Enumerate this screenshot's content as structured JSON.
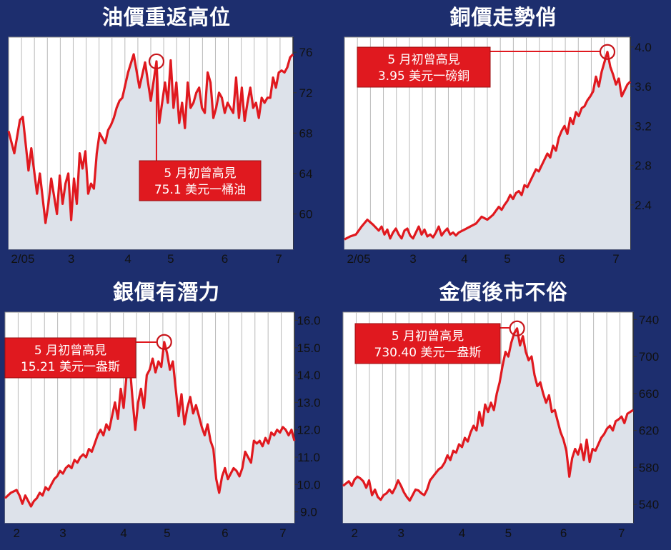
{
  "chart_data": [
    {
      "type": "line",
      "title": "油價重返高位",
      "x_labels": [
        "2/05",
        "3",
        "4",
        "5",
        "6",
        "7"
      ],
      "y_ticks": [
        "60",
        "64",
        "68",
        "72",
        "76"
      ],
      "ylim": [
        56.5,
        77.5
      ],
      "xlim": [
        0,
        1
      ],
      "label_x": [
        0.05,
        0.22,
        0.42,
        0.57,
        0.76,
        0.95
      ],
      "x": [
        0.0,
        0.02,
        0.04,
        0.05,
        0.07,
        0.08,
        0.1,
        0.11,
        0.13,
        0.14,
        0.15,
        0.17,
        0.18,
        0.19,
        0.2,
        0.21,
        0.22,
        0.23,
        0.24,
        0.25,
        0.26,
        0.27,
        0.28,
        0.29,
        0.3,
        0.31,
        0.32,
        0.33,
        0.34,
        0.35,
        0.36,
        0.37,
        0.38,
        0.39,
        0.4,
        0.42,
        0.44,
        0.46,
        0.48,
        0.5,
        0.52,
        0.53,
        0.55,
        0.56,
        0.57,
        0.58,
        0.59,
        0.6,
        0.61,
        0.62,
        0.63,
        0.64,
        0.65,
        0.66,
        0.67,
        0.68,
        0.69,
        0.7,
        0.71,
        0.72,
        0.73,
        0.74,
        0.75,
        0.76,
        0.77,
        0.78,
        0.79,
        0.8,
        0.81,
        0.82,
        0.83,
        0.84,
        0.85,
        0.86,
        0.87,
        0.88,
        0.89,
        0.9,
        0.91,
        0.92,
        0.93,
        0.94,
        0.95,
        0.96,
        0.97,
        0.98,
        0.99,
        1.0
      ],
      "y": [
        68.2,
        66.0,
        69.3,
        69.6,
        64.3,
        66.5,
        62.0,
        64.0,
        59.1,
        61.0,
        63.5,
        60.0,
        63.8,
        61.0,
        63.0,
        64.0,
        59.4,
        63.5,
        61.0,
        66.0,
        64.5,
        66.2,
        62.0,
        63.0,
        62.5,
        66.0,
        68.0,
        67.5,
        67.0,
        68.3,
        68.8,
        69.5,
        70.5,
        71.2,
        71.5,
        74.0,
        75.8,
        72.5,
        75.0,
        71.2,
        75.1,
        69.0,
        73.0,
        71.0,
        75.2,
        70.5,
        73.0,
        69.0,
        71.0,
        68.5,
        73.0,
        70.5,
        71.0,
        72.0,
        72.5,
        70.5,
        70.0,
        74.0,
        73.0,
        69.5,
        70.5,
        72.0,
        71.5,
        70.0,
        71.0,
        70.5,
        70.0,
        73.5,
        69.5,
        72.5,
        69.2,
        71.0,
        72.5,
        70.5,
        71.0,
        69.5,
        71.5,
        71.0,
        71.5,
        71.5,
        73.5,
        72.5,
        74.0,
        74.2,
        74.0,
        74.5,
        75.5,
        75.8
      ],
      "peak_index": 40,
      "callout": {
        "lines": [
          "5 月初曾高見",
          "75.1 美元一桶油"
        ]
      }
    },
    {
      "type": "line",
      "title": "銅價走勢俏",
      "x_labels": [
        "2/05",
        "3",
        "4",
        "5",
        "6",
        "7"
      ],
      "y_ticks": [
        "2.4",
        "2.8",
        "3.2",
        "3.6",
        "4.0"
      ],
      "ylim": [
        1.95,
        4.1
      ],
      "xlim": [
        0,
        1
      ],
      "label_x": [
        0.05,
        0.24,
        0.42,
        0.57,
        0.76,
        0.95
      ],
      "x": [
        0.0,
        0.02,
        0.04,
        0.06,
        0.08,
        0.1,
        0.12,
        0.13,
        0.14,
        0.15,
        0.16,
        0.17,
        0.18,
        0.19,
        0.2,
        0.21,
        0.22,
        0.23,
        0.24,
        0.25,
        0.26,
        0.27,
        0.28,
        0.29,
        0.3,
        0.31,
        0.32,
        0.33,
        0.34,
        0.35,
        0.36,
        0.37,
        0.38,
        0.39,
        0.4,
        0.42,
        0.44,
        0.46,
        0.48,
        0.5,
        0.52,
        0.53,
        0.54,
        0.55,
        0.56,
        0.57,
        0.58,
        0.59,
        0.6,
        0.61,
        0.62,
        0.63,
        0.64,
        0.65,
        0.66,
        0.67,
        0.68,
        0.69,
        0.7,
        0.71,
        0.72,
        0.73,
        0.74,
        0.75,
        0.76,
        0.77,
        0.78,
        0.79,
        0.8,
        0.81,
        0.82,
        0.83,
        0.84,
        0.85,
        0.86,
        0.87,
        0.88,
        0.89,
        0.9,
        0.91,
        0.92,
        0.93,
        0.94,
        0.95,
        0.96,
        0.97,
        0.98,
        0.99,
        1.0
      ],
      "y": [
        2.05,
        2.08,
        2.1,
        2.18,
        2.25,
        2.2,
        2.14,
        2.18,
        2.1,
        2.15,
        2.06,
        2.12,
        2.16,
        2.1,
        2.06,
        2.14,
        2.16,
        2.09,
        2.06,
        2.12,
        2.18,
        2.1,
        2.15,
        2.08,
        2.1,
        2.07,
        2.12,
        2.18,
        2.09,
        2.13,
        2.16,
        2.1,
        2.12,
        2.09,
        2.12,
        2.15,
        2.18,
        2.21,
        2.28,
        2.25,
        2.3,
        2.34,
        2.38,
        2.35,
        2.4,
        2.44,
        2.5,
        2.46,
        2.52,
        2.54,
        2.5,
        2.6,
        2.58,
        2.64,
        2.7,
        2.76,
        2.74,
        2.8,
        2.86,
        2.92,
        2.88,
        3.0,
        2.95,
        3.08,
        3.15,
        3.2,
        3.12,
        3.28,
        3.22,
        3.34,
        3.3,
        3.38,
        3.4,
        3.46,
        3.5,
        3.55,
        3.7,
        3.6,
        3.75,
        3.85,
        3.95,
        3.8,
        3.72,
        3.62,
        3.68,
        3.5,
        3.56,
        3.62,
        3.65
      ],
      "peak_index": 80,
      "callout": {
        "lines": [
          "5 月初曾高見",
          "3.95 美元一磅銅"
        ]
      }
    },
    {
      "type": "line",
      "title": "銀價有潛力",
      "x_labels": [
        "2",
        "3",
        "4",
        "5",
        "6",
        "7"
      ],
      "y_ticks": [
        "9.0",
        "10.0",
        "11.0",
        "12.0",
        "13.0",
        "14.0",
        "15.0",
        "16.0"
      ],
      "ylim": [
        8.6,
        16.3
      ],
      "xlim": [
        0,
        1
      ],
      "label_x": [
        0.04,
        0.2,
        0.41,
        0.56,
        0.76,
        0.96
      ],
      "x": [
        0.0,
        0.02,
        0.04,
        0.05,
        0.06,
        0.07,
        0.08,
        0.09,
        0.1,
        0.11,
        0.12,
        0.13,
        0.14,
        0.15,
        0.16,
        0.17,
        0.18,
        0.19,
        0.2,
        0.21,
        0.22,
        0.23,
        0.24,
        0.25,
        0.26,
        0.27,
        0.28,
        0.29,
        0.3,
        0.31,
        0.32,
        0.33,
        0.34,
        0.35,
        0.36,
        0.37,
        0.38,
        0.39,
        0.4,
        0.41,
        0.42,
        0.43,
        0.44,
        0.45,
        0.46,
        0.47,
        0.48,
        0.49,
        0.5,
        0.51,
        0.52,
        0.53,
        0.54,
        0.55,
        0.56,
        0.57,
        0.58,
        0.59,
        0.6,
        0.61,
        0.62,
        0.63,
        0.64,
        0.65,
        0.66,
        0.67,
        0.68,
        0.69,
        0.7,
        0.71,
        0.72,
        0.73,
        0.74,
        0.75,
        0.76,
        0.77,
        0.78,
        0.79,
        0.8,
        0.81,
        0.82,
        0.83,
        0.84,
        0.85,
        0.86,
        0.87,
        0.88,
        0.89,
        0.9,
        0.91,
        0.92,
        0.93,
        0.94,
        0.95,
        0.96,
        0.97,
        0.98,
        0.99,
        1.0
      ],
      "y": [
        9.5,
        9.7,
        9.8,
        9.6,
        9.3,
        9.6,
        9.4,
        9.2,
        9.4,
        9.5,
        9.7,
        9.6,
        9.9,
        9.8,
        10.0,
        10.2,
        10.3,
        10.5,
        10.4,
        10.6,
        10.7,
        10.6,
        10.9,
        10.8,
        11.0,
        11.1,
        11.0,
        11.3,
        11.2,
        11.5,
        11.8,
        12.0,
        11.8,
        12.2,
        12.0,
        12.5,
        13.0,
        12.4,
        13.5,
        12.8,
        14.0,
        14.5,
        13.2,
        12.0,
        13.0,
        13.5,
        12.8,
        14.0,
        14.2,
        14.6,
        14.1,
        14.5,
        14.3,
        15.21,
        14.8,
        14.2,
        14.5,
        13.5,
        12.5,
        13.3,
        12.2,
        12.8,
        13.2,
        12.6,
        12.9,
        12.5,
        12.1,
        11.8,
        12.2,
        11.6,
        11.3,
        10.2,
        9.7,
        10.3,
        10.6,
        10.2,
        10.4,
        10.6,
        10.5,
        10.3,
        10.6,
        11.2,
        11.0,
        10.8,
        11.6,
        11.5,
        11.6,
        11.4,
        11.7,
        11.5,
        11.9,
        11.8,
        12.0,
        11.9,
        12.1,
        12.0,
        11.8,
        12.0,
        11.6
      ],
      "peak_index": 53,
      "callout": {
        "lines": [
          "5 月初曾高見",
          "15.21 美元一盎斯"
        ]
      }
    },
    {
      "type": "line",
      "title": "金價後市不俗",
      "x_labels": [
        "2",
        "3",
        "4",
        "5",
        "6",
        "7"
      ],
      "y_ticks": [
        "540",
        "580",
        "620",
        "660",
        "700",
        "740"
      ],
      "ylim": [
        520,
        748
      ],
      "xlim": [
        0,
        1
      ],
      "label_x": [
        0.04,
        0.2,
        0.41,
        0.57,
        0.76,
        0.96
      ],
      "x": [
        0.0,
        0.02,
        0.03,
        0.04,
        0.05,
        0.06,
        0.07,
        0.08,
        0.09,
        0.1,
        0.11,
        0.12,
        0.13,
        0.14,
        0.15,
        0.16,
        0.17,
        0.18,
        0.19,
        0.2,
        0.21,
        0.22,
        0.23,
        0.24,
        0.25,
        0.26,
        0.27,
        0.28,
        0.29,
        0.3,
        0.31,
        0.32,
        0.33,
        0.34,
        0.35,
        0.36,
        0.37,
        0.38,
        0.39,
        0.4,
        0.41,
        0.42,
        0.43,
        0.44,
        0.45,
        0.46,
        0.47,
        0.48,
        0.49,
        0.5,
        0.51,
        0.52,
        0.53,
        0.54,
        0.55,
        0.56,
        0.57,
        0.58,
        0.59,
        0.6,
        0.61,
        0.62,
        0.63,
        0.64,
        0.65,
        0.66,
        0.67,
        0.68,
        0.69,
        0.7,
        0.71,
        0.72,
        0.73,
        0.74,
        0.75,
        0.76,
        0.77,
        0.78,
        0.79,
        0.8,
        0.81,
        0.82,
        0.83,
        0.84,
        0.85,
        0.86,
        0.87,
        0.88,
        0.89,
        0.9,
        0.91,
        0.92,
        0.93,
        0.94,
        0.95,
        0.96,
        0.97,
        0.98,
        0.99,
        1.0
      ],
      "y": [
        560,
        565,
        560,
        567,
        570,
        568,
        565,
        558,
        566,
        550,
        556,
        548,
        545,
        550,
        552,
        556,
        552,
        558,
        566,
        560,
        553,
        548,
        544,
        550,
        556,
        555,
        552,
        550,
        556,
        566,
        570,
        574,
        578,
        580,
        585,
        593,
        588,
        598,
        596,
        605,
        602,
        612,
        608,
        618,
        625,
        620,
        640,
        625,
        648,
        640,
        650,
        642,
        660,
        672,
        690,
        705,
        700,
        715,
        725,
        730.4,
        712,
        722,
        705,
        696,
        700,
        680,
        668,
        672,
        660,
        650,
        658,
        640,
        642,
        630,
        618,
        610,
        598,
        570,
        590,
        600,
        594,
        605,
        588,
        610,
        586,
        600,
        598,
        605,
        612,
        616,
        622,
        625,
        620,
        630,
        632,
        635,
        628,
        638,
        640,
        642
      ],
      "peak_index": 59,
      "callout": {
        "lines": [
          "5 月初曾高見",
          "730.40 美元一盎斯"
        ]
      }
    }
  ]
}
